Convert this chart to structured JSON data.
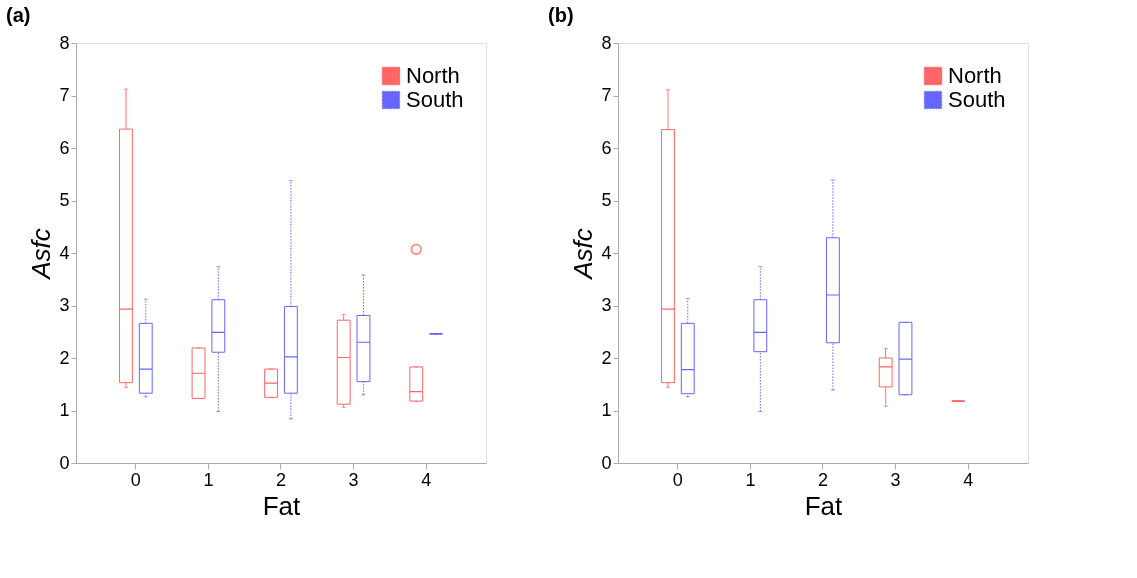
{
  "chart_data": [
    {
      "type": "box",
      "title": "(a)",
      "xlabel": "Fat",
      "ylabel": "Asfc",
      "categories": [
        "0",
        "1",
        "2",
        "3",
        "4"
      ],
      "ylim": [
        0,
        8
      ],
      "yticks": [
        0,
        1,
        2,
        3,
        4,
        5,
        6,
        7,
        8
      ],
      "legend": "top right",
      "series": [
        {
          "name": "North",
          "color": "#ff6666",
          "line_style": "solid",
          "boxes": [
            {
              "low": 1.44,
              "q1": 1.53,
              "median": 2.93,
              "q3": 6.36,
              "high": 7.12
            },
            {
              "low": 1.23,
              "q1": 1.23,
              "median": 1.71,
              "q3": 2.19,
              "high": 2.19
            },
            {
              "low": 1.25,
              "q1": 1.25,
              "median": 1.52,
              "q3": 1.79,
              "high": 1.79
            },
            {
              "low": 1.06,
              "q1": 1.12,
              "median": 2.01,
              "q3": 2.72,
              "high": 2.83
            },
            {
              "low": 1.17,
              "q1": 1.18,
              "median": 1.36,
              "q3": 1.83,
              "high": 1.83,
              "outliers": [
                4.07
              ]
            }
          ]
        },
        {
          "name": "South",
          "color": "#6666ff",
          "line_style": "dotted",
          "boxes": [
            {
              "low": 1.26,
              "q1": 1.33,
              "median": 1.79,
              "q3": 2.66,
              "high": 3.12
            },
            {
              "low": 0.98,
              "q1": 2.11,
              "median": 2.49,
              "q3": 3.11,
              "high": 3.74
            },
            {
              "low": 0.84,
              "q1": 1.33,
              "median": 2.02,
              "q3": 2.98,
              "high": 5.38
            },
            {
              "low": 1.3,
              "q1": 1.55,
              "median": 2.3,
              "q3": 2.81,
              "high": 3.58
            },
            {
              "low": 2.46,
              "q1": 2.46,
              "median": 2.46,
              "q3": 2.46,
              "high": 2.46
            }
          ]
        }
      ]
    },
    {
      "type": "box",
      "title": "(b)",
      "xlabel": "Fat",
      "ylabel": "Asfc",
      "categories": [
        "0",
        "1",
        "2",
        "3",
        "4"
      ],
      "ylim": [
        0,
        8
      ],
      "yticks": [
        0,
        1,
        2,
        3,
        4,
        5,
        6,
        7,
        8
      ],
      "legend": "top right",
      "series": [
        {
          "name": "North",
          "color": "#ff6666",
          "line_style": "solid",
          "boxes": [
            {
              "low": 1.44,
              "q1": 1.53,
              "median": 2.93,
              "q3": 6.35,
              "high": 7.11
            },
            null,
            null,
            {
              "low": 1.08,
              "q1": 1.45,
              "median": 1.83,
              "q3": 2.0,
              "high": 2.18
            },
            {
              "low": 1.18,
              "q1": 1.18,
              "median": 1.18,
              "q3": 1.18,
              "high": 1.18
            }
          ]
        },
        {
          "name": "South",
          "color": "#6666ff",
          "line_style": "dotted",
          "boxes": [
            {
              "low": 1.26,
              "q1": 1.32,
              "median": 1.78,
              "q3": 2.66,
              "high": 3.13
            },
            {
              "low": 0.98,
              "q1": 2.12,
              "median": 2.49,
              "q3": 3.11,
              "high": 3.74
            },
            {
              "low": 1.39,
              "q1": 2.29,
              "median": 3.2,
              "q3": 4.29,
              "high": 5.39
            },
            {
              "low": 1.3,
              "q1": 1.3,
              "median": 1.98,
              "q3": 2.68,
              "high": 2.68
            },
            null
          ]
        }
      ]
    }
  ]
}
